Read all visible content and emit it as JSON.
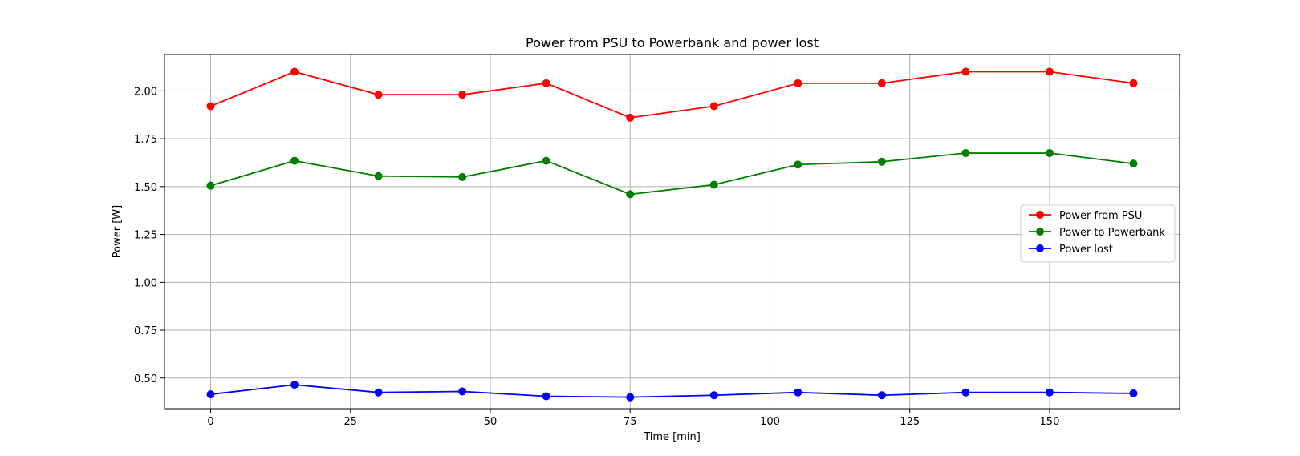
{
  "chart_data": {
    "type": "line",
    "title": "Power from PSU to Powerbank and power lost",
    "xlabel": "Time [min]",
    "ylabel": "Power [W]",
    "xlim": [
      -8.25,
      173.25
    ],
    "ylim": [
      0.34,
      2.19
    ],
    "xticks": [
      0,
      25,
      50,
      75,
      100,
      125,
      150
    ],
    "xtick_labels": [
      "0",
      "25",
      "50",
      "75",
      "100",
      "125",
      "150"
    ],
    "yticks": [
      0.5,
      0.75,
      1.0,
      1.25,
      1.5,
      1.75,
      2.0
    ],
    "ytick_labels": [
      "0.50",
      "0.75",
      "1.00",
      "1.25",
      "1.50",
      "1.75",
      "2.00"
    ],
    "grid": true,
    "legend_position": "center-right",
    "x": [
      0,
      15,
      30,
      45,
      60,
      75,
      90,
      105,
      120,
      135,
      150,
      165
    ],
    "series": [
      {
        "name": "Power from PSU",
        "color": "#ff0000",
        "values": [
          1.92,
          2.1,
          1.98,
          1.98,
          2.04,
          1.86,
          1.92,
          2.04,
          2.04,
          2.1,
          2.1,
          2.04
        ]
      },
      {
        "name": "Power to Powerbank",
        "color": "#008000",
        "values": [
          1.505,
          1.635,
          1.555,
          1.55,
          1.635,
          1.46,
          1.51,
          1.615,
          1.63,
          1.675,
          1.675,
          1.62
        ]
      },
      {
        "name": "Power lost",
        "color": "#0000ff",
        "values": [
          0.415,
          0.465,
          0.425,
          0.43,
          0.405,
          0.4,
          0.41,
          0.425,
          0.41,
          0.425,
          0.425,
          0.42
        ]
      }
    ]
  }
}
